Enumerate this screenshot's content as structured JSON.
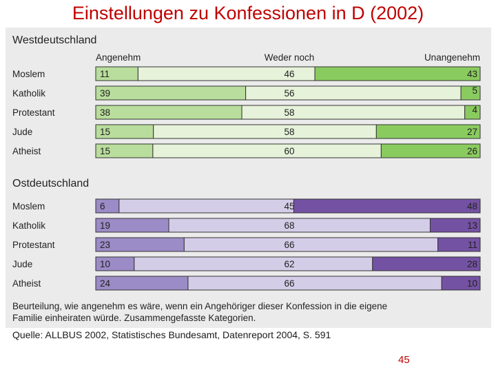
{
  "page": {
    "title": "Einstellungen zu Konfessionen in D (2002)",
    "source": "Quelle: ALLBUS 2002, Statistisches Bundesamt, Datenreport 2004, S. 591",
    "page_number": "45"
  },
  "chart_data": [
    {
      "type": "bar",
      "stacked": true,
      "orientation": "horizontal",
      "panel_title": "Westdeutschland",
      "column_headers": [
        "Angenehm",
        "Weder noch",
        "Unangenehm"
      ],
      "categories": [
        "Moslem",
        "Katholik",
        "Protestant",
        "Jude",
        "Atheist"
      ],
      "series": [
        {
          "name": "Angenehm",
          "values": [
            11,
            39,
            38,
            15,
            15
          ]
        },
        {
          "name": "Weder noch",
          "values": [
            46,
            56,
            58,
            58,
            60
          ]
        },
        {
          "name": "Unangenehm",
          "values": [
            43,
            5,
            4,
            27,
            26
          ]
        }
      ],
      "colors": {
        "pos": "#b9dd9c",
        "neutral": "#e6f2d9",
        "neg": "#8acb5f"
      }
    },
    {
      "type": "bar",
      "stacked": true,
      "orientation": "horizontal",
      "panel_title": "Ostdeutschland",
      "categories": [
        "Moslem",
        "Katholik",
        "Protestant",
        "Jude",
        "Atheist"
      ],
      "series": [
        {
          "name": "Angenehm",
          "values": [
            6,
            19,
            23,
            10,
            24
          ]
        },
        {
          "name": "Weder noch",
          "values": [
            45,
            68,
            66,
            62,
            66
          ]
        },
        {
          "name": "Unangenehm",
          "values": [
            48,
            13,
            11,
            28,
            10
          ]
        }
      ],
      "colors": {
        "pos": "#9b8bc6",
        "neutral": "#d4cde8",
        "neg": "#7452a3"
      }
    }
  ],
  "note": "Beurteilung, wie angenehm es wäre, wenn ein Angehöriger dieser Konfession in die eigene Familie einheiraten würde. Zusammengefasste Kategorien."
}
